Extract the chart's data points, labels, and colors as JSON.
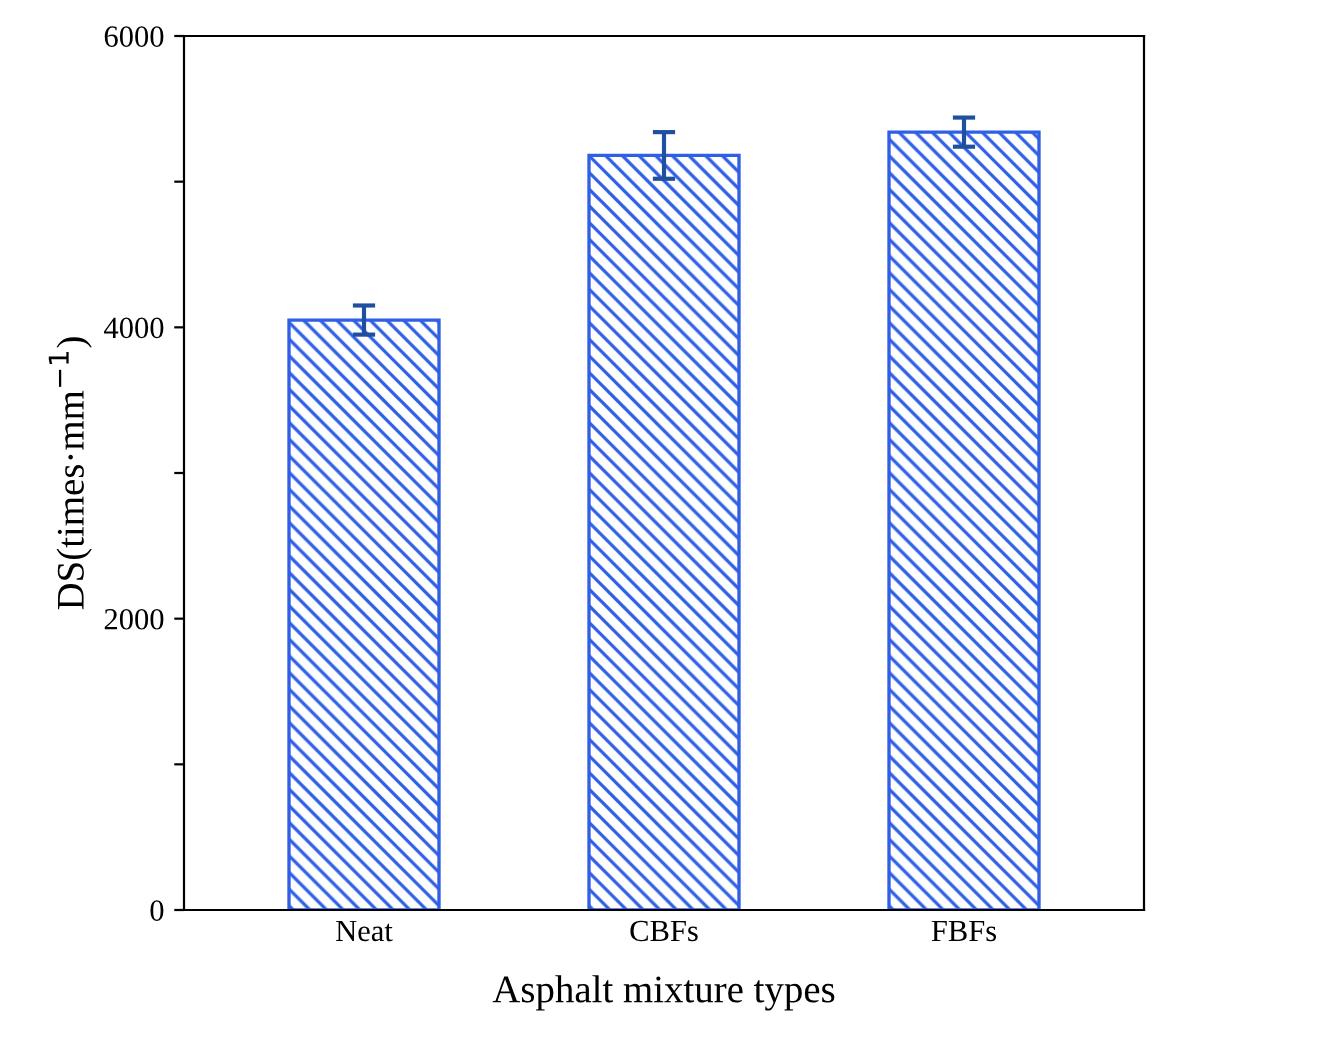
{
  "chart_data": {
    "type": "bar",
    "xlabel": "Asphalt mixture types",
    "ylabel": "DS(times·mm$^{−1}$)",
    "categories": [
      "Neat",
      "CBFs",
      "FBFs"
    ],
    "values": [
      4050,
      5180,
      5340
    ],
    "errors": [
      100,
      160,
      100
    ],
    "color": "#2f5fe6",
    "ylim": [
      0,
      6000
    ],
    "yticks": [
      0,
      {
        "value": 1000,
        "label": null
      },
      2000,
      {
        "value": 3000,
        "label": null
      },
      4000,
      {
        "value": 5000,
        "label": null
      },
      6000
    ],
    "grid": false,
    "legend": false
  }
}
